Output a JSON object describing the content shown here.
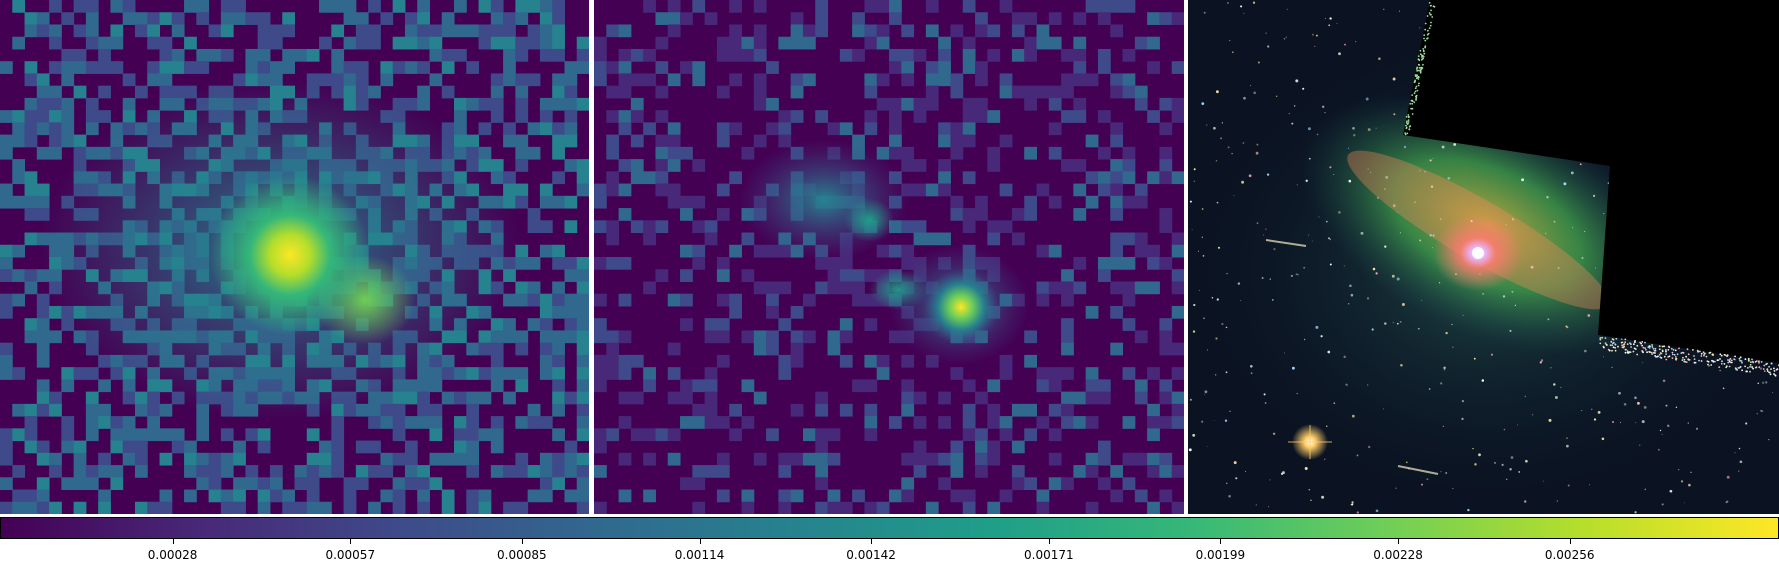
{
  "panels": [
    {
      "name": "left-map",
      "colormap": "viridis"
    },
    {
      "name": "middle-map",
      "colormap": "viridis"
    },
    {
      "name": "right-galaxy-image",
      "content": "barred spiral galaxy composite"
    }
  ],
  "colorbar": {
    "colormap": "viridis",
    "colors": [
      "#440154",
      "#482878",
      "#3e4a89",
      "#31688e",
      "#26828e",
      "#1f9e89",
      "#35b779",
      "#6ece58",
      "#b5de2b",
      "#fde725"
    ],
    "ticks": [
      "0.00028",
      "0.00057",
      "0.00085",
      "0.00114",
      "0.00142",
      "0.00171",
      "0.00199",
      "0.00228",
      "0.00256"
    ],
    "tick_values": [
      0.00028,
      0.00057,
      0.00085,
      0.00114,
      0.00142,
      0.00171,
      0.00199,
      0.00228,
      0.00256
    ],
    "range": [
      0.0,
      0.0029
    ]
  }
}
